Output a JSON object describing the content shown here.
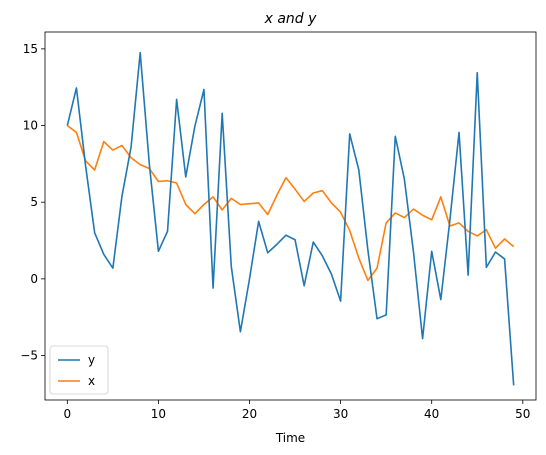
{
  "chart_data": {
    "type": "line",
    "title": "x and y",
    "xlabel": "Time",
    "ylabel": "",
    "xlim": [
      -2.45,
      51.45
    ],
    "ylim": [
      -7.9,
      16.1
    ],
    "xticks": [
      0,
      10,
      20,
      30,
      40,
      50
    ],
    "yticks": [
      -5,
      0,
      5,
      10,
      15
    ],
    "grid": false,
    "legend_position": "bottom-left",
    "x": [
      0,
      1,
      2,
      3,
      4,
      5,
      6,
      7,
      8,
      9,
      10,
      11,
      12,
      13,
      14,
      15,
      16,
      17,
      18,
      19,
      20,
      21,
      22,
      23,
      24,
      25,
      26,
      27,
      28,
      29,
      30,
      31,
      32,
      33,
      34,
      35,
      36,
      37,
      38,
      39,
      40,
      41,
      42,
      43,
      44,
      45,
      46,
      47,
      48,
      49
    ],
    "series": [
      {
        "name": "y",
        "color": "#1f77b4",
        "values": [
          10.0,
          12.45,
          7.4,
          3.0,
          1.6,
          0.7,
          5.4,
          8.6,
          14.75,
          7.5,
          1.8,
          3.1,
          11.7,
          6.65,
          9.95,
          12.35,
          -0.6,
          10.8,
          0.8,
          -3.45,
          0.0,
          3.75,
          1.7,
          2.25,
          2.85,
          2.55,
          -0.45,
          2.4,
          1.5,
          0.3,
          -1.45,
          9.45,
          7.1,
          1.85,
          -2.6,
          -2.35,
          9.3,
          6.5,
          1.75,
          -3.9,
          1.8,
          -1.35,
          3.85,
          9.55,
          0.25,
          13.45,
          0.75,
          1.75,
          1.3,
          -6.95
        ]
      },
      {
        "name": "x",
        "color": "#ff7f0e",
        "values": [
          10.0,
          9.55,
          7.7,
          7.1,
          8.95,
          8.4,
          8.7,
          7.9,
          7.45,
          7.2,
          6.35,
          6.4,
          6.25,
          4.85,
          4.25,
          4.85,
          5.35,
          4.5,
          5.25,
          4.85,
          4.9,
          4.95,
          4.2,
          5.45,
          6.6,
          5.85,
          5.05,
          5.6,
          5.75,
          4.95,
          4.35,
          3.15,
          1.35,
          -0.1,
          0.7,
          3.65,
          4.3,
          4.0,
          4.55,
          4.15,
          3.85,
          5.35,
          3.45,
          3.65,
          3.1,
          2.8,
          3.2,
          2.0,
          2.6,
          2.1
        ]
      }
    ]
  }
}
